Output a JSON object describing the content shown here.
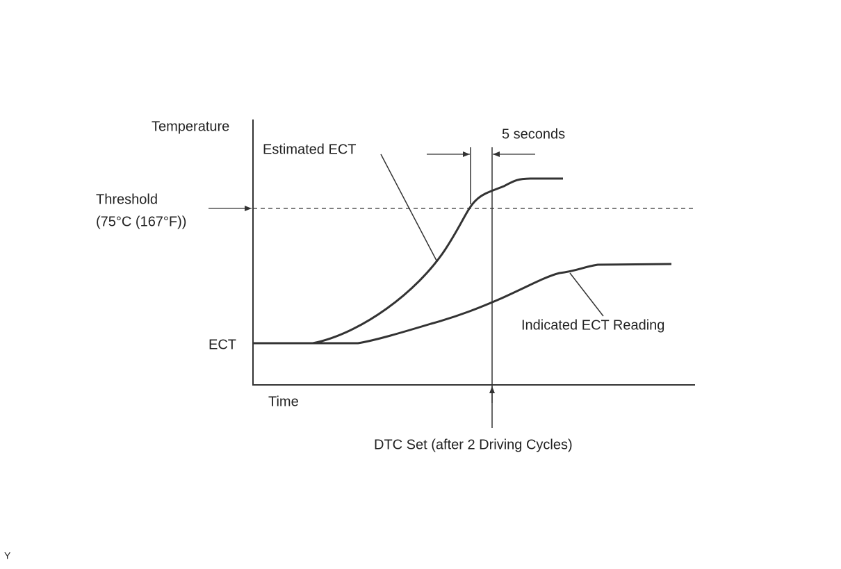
{
  "labels": {
    "y_axis": "Temperature",
    "x_axis": "Time",
    "ect": "ECT",
    "threshold": "Threshold",
    "threshold_value": "(75°C (167°F))",
    "estimated": "Estimated ECT",
    "indicated": "Indicated ECT Reading",
    "interval": "5 seconds",
    "dtc": "DTC Set (after 2 Driving Cycles)"
  },
  "footer": {
    "code": "Y"
  }
}
